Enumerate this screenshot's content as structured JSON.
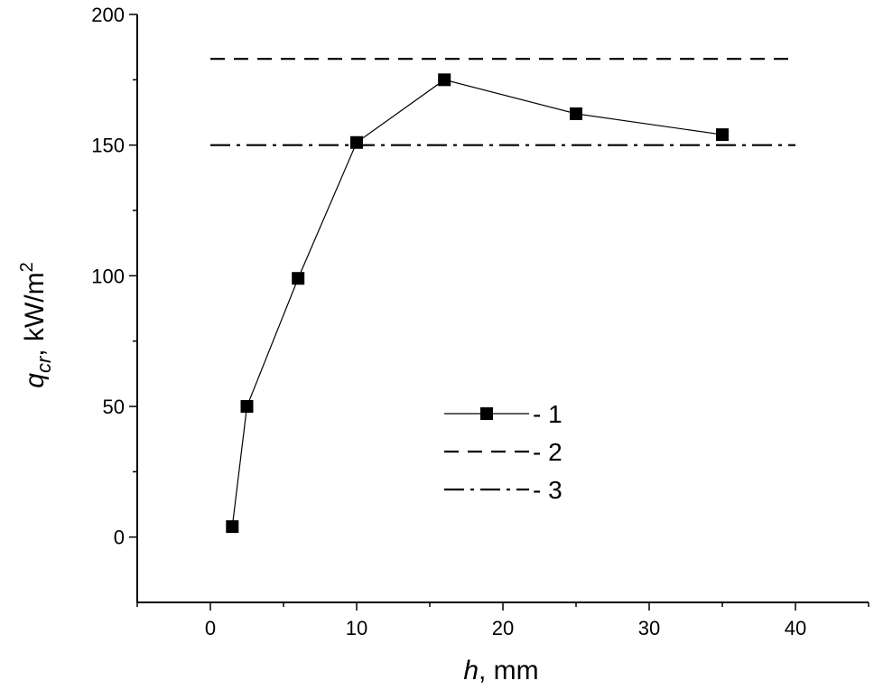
{
  "chart_data": {
    "type": "line",
    "xlabel": {
      "var": "h",
      "unit": ", mm"
    },
    "ylabel": {
      "var": "q",
      "sub": "cr",
      "unit": ",  kW/m",
      "sup": "2"
    },
    "xlim": [
      -5,
      45
    ],
    "ylim": [
      -25,
      200
    ],
    "x_ticks": [
      0,
      10,
      20,
      30,
      40
    ],
    "y_ticks": [
      0,
      50,
      100,
      150,
      200
    ],
    "grid": false,
    "legend_position": "center",
    "series": [
      {
        "name": "1",
        "style": "line-square-marker",
        "x": [
          1.5,
          2.5,
          6,
          10,
          16,
          25,
          35
        ],
        "y": [
          4,
          50,
          99,
          151,
          175,
          162,
          154
        ]
      },
      {
        "name": "2",
        "style": "dashed",
        "x": [
          0,
          40
        ],
        "y": [
          183,
          183
        ]
      },
      {
        "name": "3",
        "style": "dash-dot",
        "x": [
          0,
          40
        ],
        "y": [
          150,
          150
        ]
      }
    ],
    "legend": [
      {
        "marker": "line-square-marker",
        "label": "- 1"
      },
      {
        "marker": "dashed",
        "label": "- 2"
      },
      {
        "marker": "dash-dot",
        "label": "- 3"
      }
    ]
  }
}
